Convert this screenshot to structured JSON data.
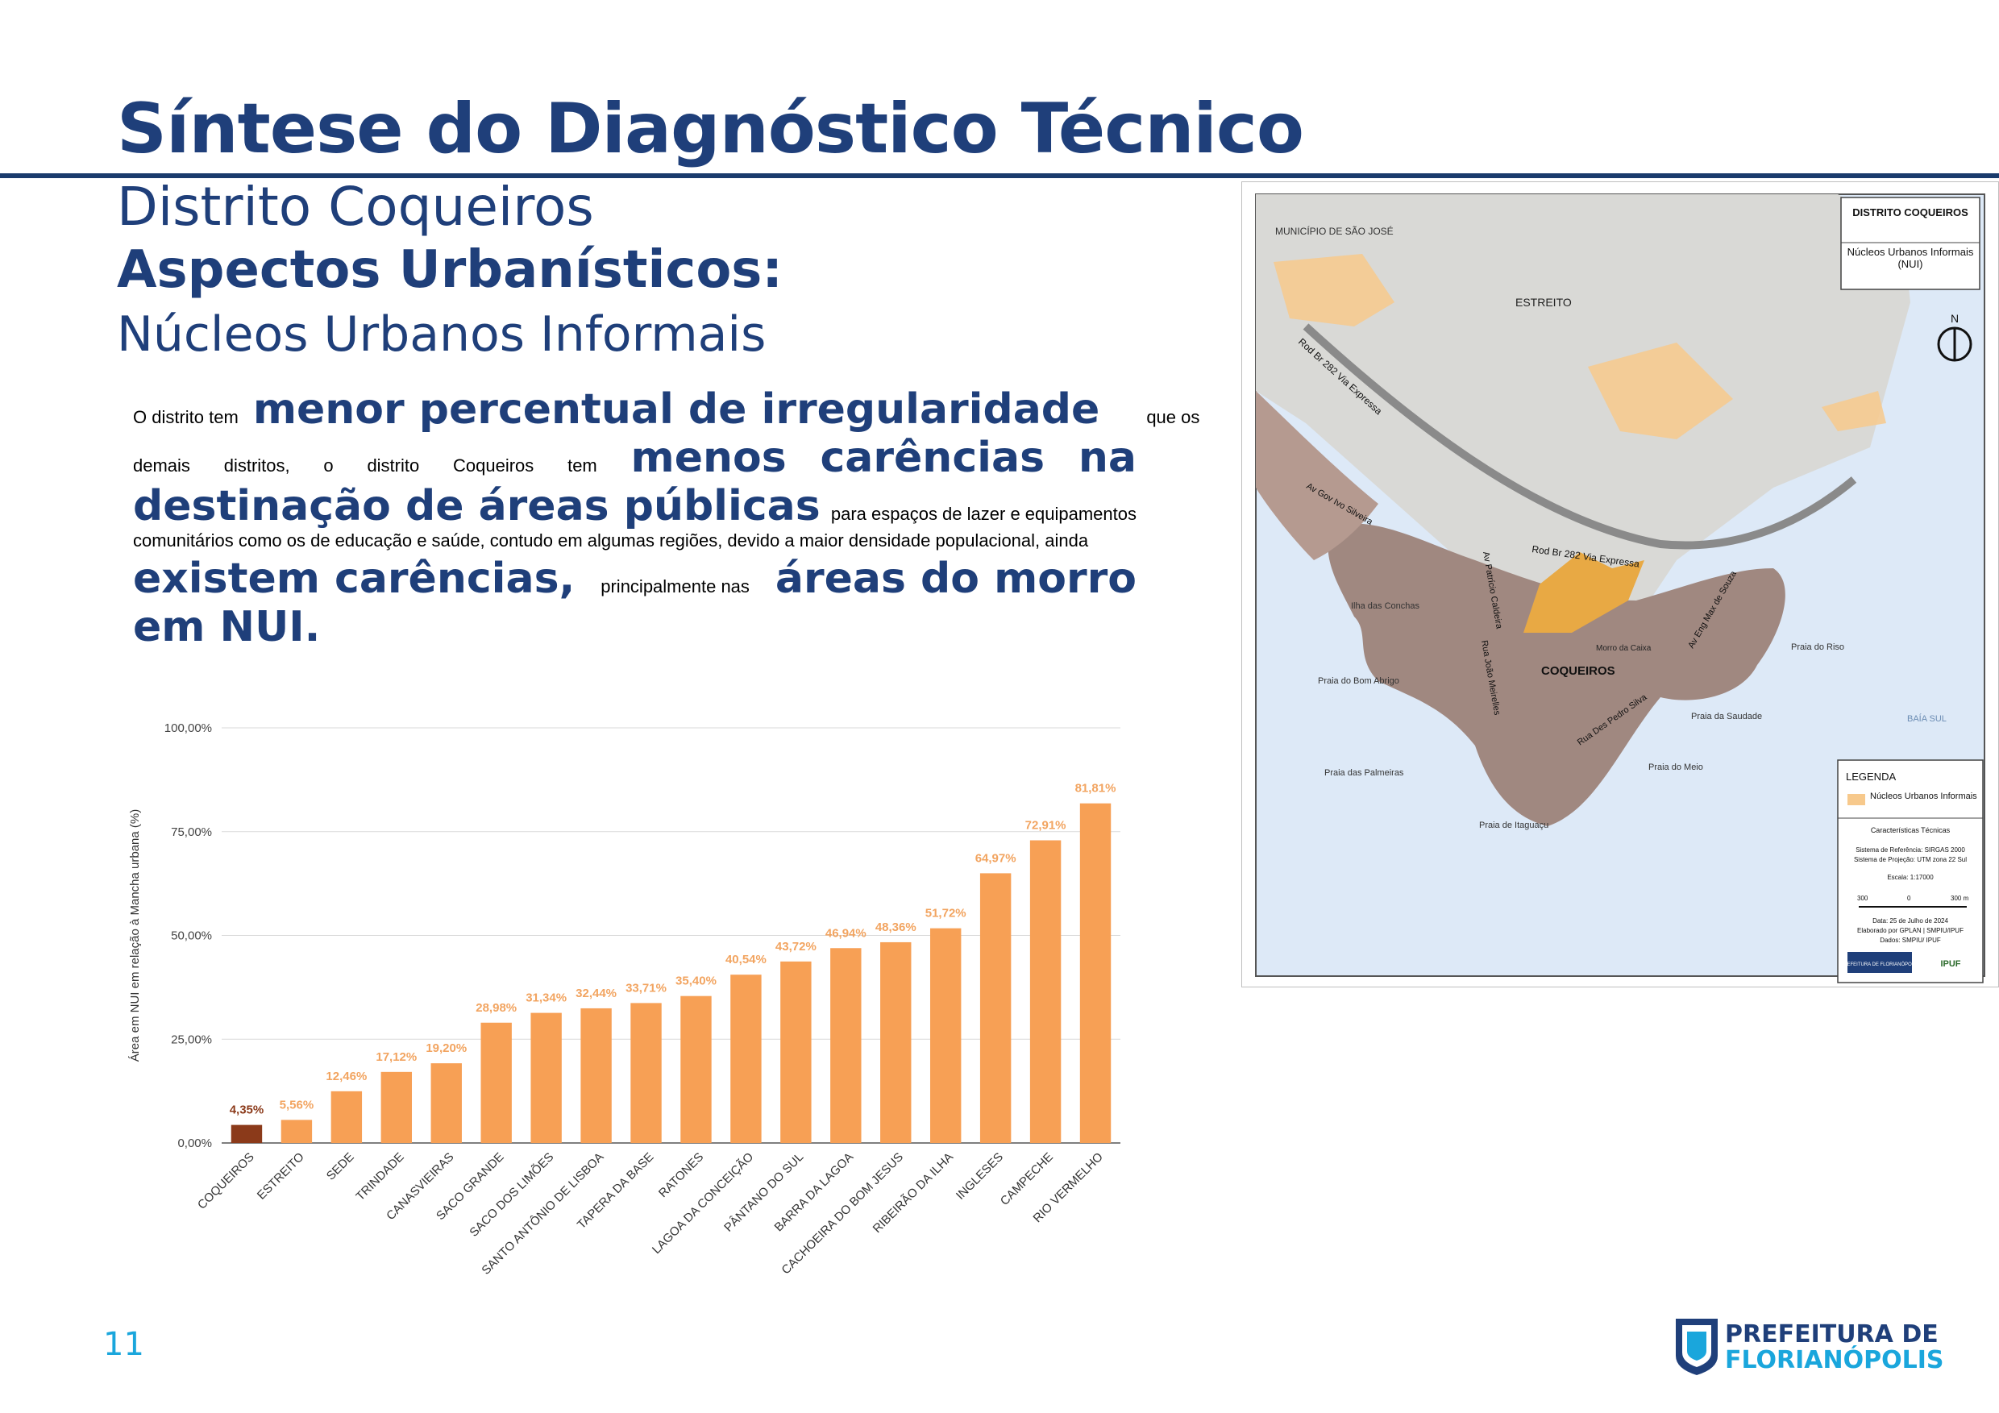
{
  "header": {
    "title": "Síntese do Diagnóstico Técnico",
    "district": "Distrito Coqueiros",
    "section": "Aspectos Urbanísticos:",
    "subsection": "Núcleos Urbanos Informais"
  },
  "body": {
    "l1a": "O distrito tem",
    "l1b": "menor percentual de irregularidade",
    "l1c": "que os",
    "l2a": "demais",
    "l2b": "distritos,",
    "l2c": "o",
    "l2d": "distrito",
    "l2e": "Coqueiros",
    "l2f": "tem",
    "l2g": "menos",
    "l2h": "carências",
    "l2i": "na",
    "l3a": "destinação de áreas públicas",
    "l3b": "para espaços de lazer e equipamentos",
    "l4": "comunitários como os de educação e saúde, contudo em algumas regiões, devido a maior densidade populacional, ainda",
    "l5a": "existem carências,",
    "l5b": "principalmente nas",
    "l5c": "áreas do morro",
    "l6": "em NUI."
  },
  "chart_data": {
    "type": "bar",
    "ylabel": "Área em NUI em relação à Mancha urbana (%)",
    "ylim": [
      0,
      100
    ],
    "yticks": [
      "0,00%",
      "25,00%",
      "50,00%",
      "75,00%",
      "100,00%"
    ],
    "categories": [
      "COQUEIROS",
      "ESTREITO",
      "SEDE",
      "TRINDADE",
      "CANASVIEIRAS",
      "SACO GRANDE",
      "SACO DOS LIMÕES",
      "SANTO ANTÔNIO DE LISBOA",
      "TAPERA DA BASE",
      "RATONES",
      "LAGOA DA CONCEIÇÃO",
      "PÂNTANO DO SUL",
      "BARRA DA LAGOA",
      "CACHOEIRA DO BOM JESUS",
      "RIBEIRÃO DA ILHA",
      "INGLESES",
      "CAMPECHE",
      "RIO VERMELHO"
    ],
    "values": [
      4.35,
      5.56,
      12.46,
      17.12,
      19.2,
      28.98,
      31.34,
      32.44,
      33.71,
      35.4,
      40.54,
      43.72,
      46.94,
      48.36,
      51.72,
      64.97,
      72.91,
      81.81
    ],
    "labels": [
      "4,35%",
      "5,56%",
      "12,46%",
      "17,12%",
      "19,20%",
      "28,98%",
      "31,34%",
      "32,44%",
      "33,71%",
      "35,40%",
      "40,54%",
      "43,72%",
      "46,94%",
      "48,36%",
      "51,72%",
      "64,97%",
      "72,91%",
      "81,81%"
    ],
    "highlight_index": 0,
    "colors": {
      "highlight": "#8b3a1a",
      "bar": "#f7a055",
      "label": "#f2a460",
      "highlight_label": "#8b3a1a"
    },
    "grid": true
  },
  "map": {
    "title": "DISTRITO COQUEIROS",
    "subtitle": "Núcleos Urbanos Informais (NUI)",
    "north": "N",
    "places": {
      "municipio": "MUNICÍPIO DE SÃO JOSÉ",
      "estreito": "ESTREITO",
      "coqueiros": "COQUEIROS",
      "conchas": "Ilha das Conchas",
      "bom_abrigo": "Praia do Bom Abrigo",
      "palmeiras": "Praia das Palmeiras",
      "itaguacu": "Praia de Itaguaçu",
      "meio": "Praia do Meio",
      "saudade": "Praia da Saudade",
      "riso": "Praia do Riso",
      "baia": "BAÍA SUL",
      "morro": "Morro da Caixa"
    },
    "roads": {
      "br282_a": "Rod Br 282 Via Expressa",
      "br282_b": "Rod Br 282 Via Expressa",
      "gov": "Av Gov Ivo Silveira",
      "patricio": "Av Patrício Caldeira",
      "meireles": "Rua João Meirelles",
      "pedro": "Rua Des Pedro Silva",
      "elza": "Av Eng Max de Souza"
    },
    "legend": {
      "title": "LEGENDA",
      "item": "Núcleos Urbanos Informais",
      "tech": "Características Técnicas",
      "ref": "Sistema de Referência: SIRGAS 2000",
      "proj": "Sistema de Projeção: UTM zona 22 Sul",
      "scale": "Escala: 1:17000",
      "s0": "300",
      "s1": "0",
      "s2": "300 m",
      "date": "Data: 25 de Julho de 2024",
      "elab": "Elaborado por GPLAN | SMPIU/IPUF",
      "dados": "Dados: SMPIU/ IPUF",
      "logo1": "PREFEITURA DE FLORIANÓPOLIS",
      "logo2": "IPUF"
    }
  },
  "footer": {
    "page": "11",
    "logo_line1": "PREFEITURA DE",
    "logo_line2": "FLORIANÓPOLIS"
  },
  "colors": {
    "primary": "#1f3f7a",
    "accent": "#1aa6dc",
    "nui": "#f7c98c"
  }
}
